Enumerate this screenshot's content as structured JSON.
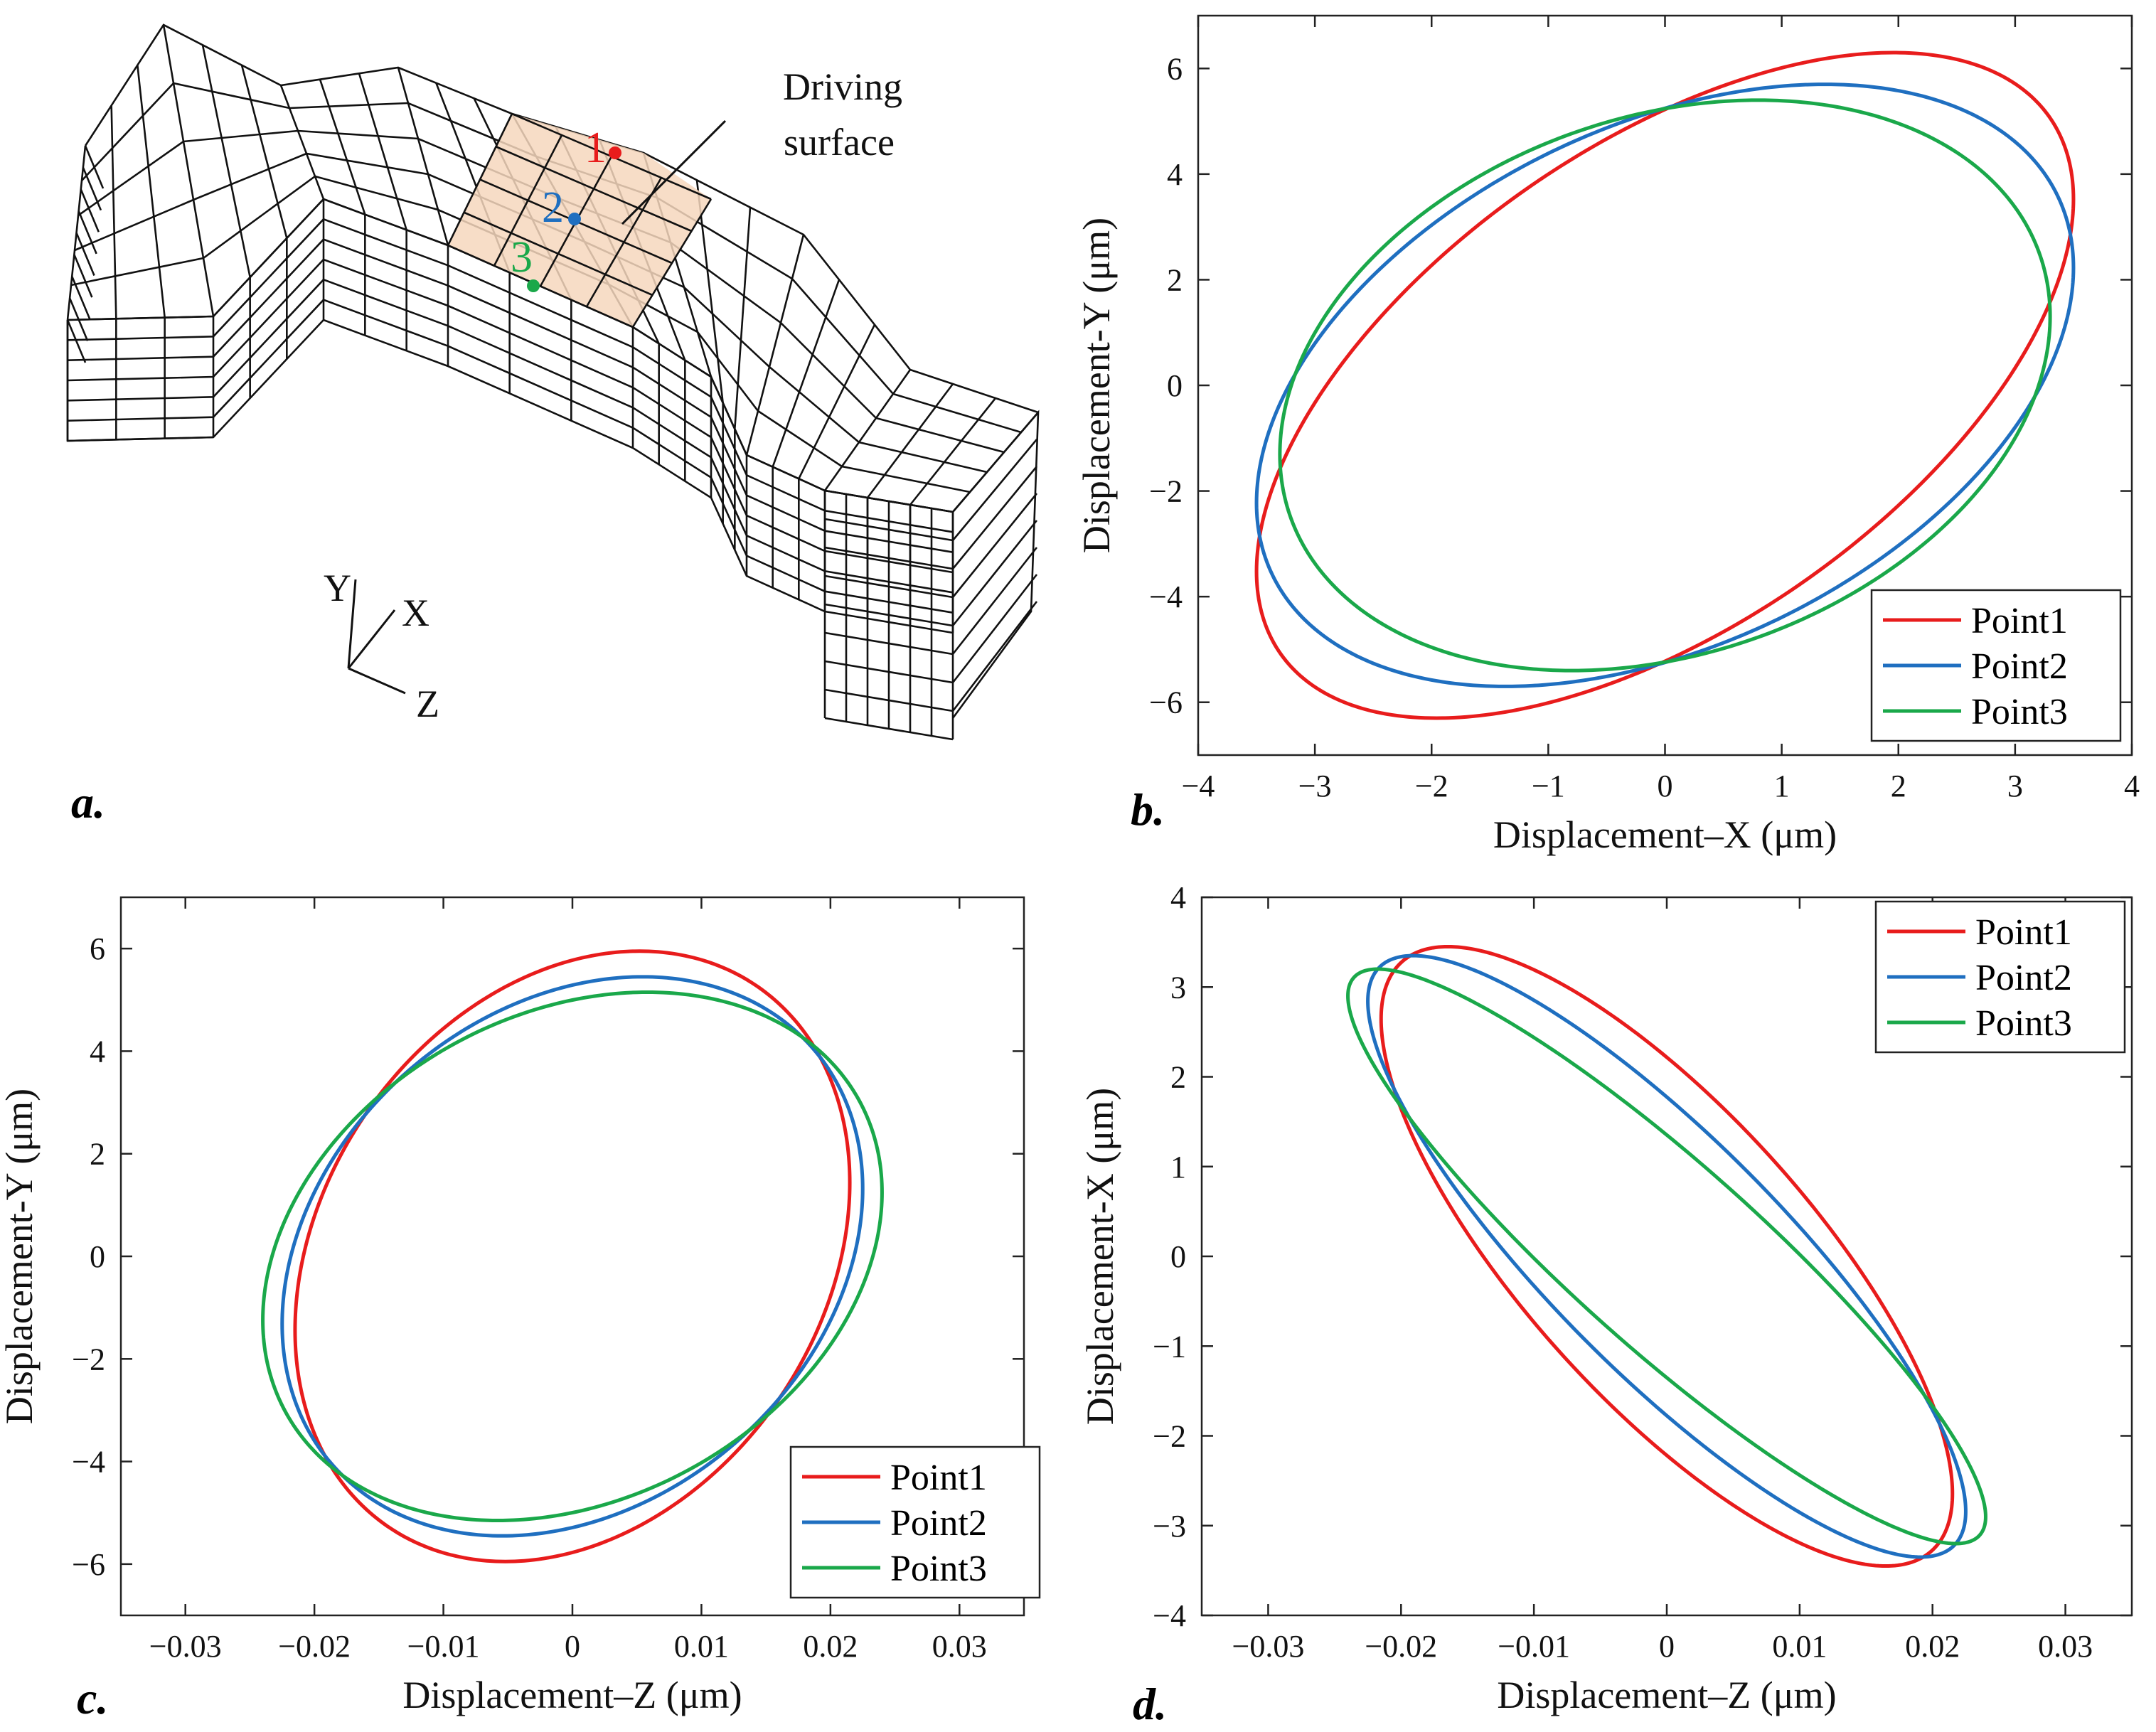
{
  "figure": {
    "panel_labels": {
      "a": "a.",
      "b": "b.",
      "c": "c.",
      "d": "d."
    },
    "colors": {
      "point1": "#e81c1c",
      "point2": "#1f6fc0",
      "point3": "#1aa84a",
      "driving_surface": "#f6d7bd"
    },
    "panel_a": {
      "driving_label_line1": "Driving",
      "driving_label_line2": "surface",
      "point_labels": [
        "1",
        "2",
        "3"
      ],
      "axis_labels": {
        "y": "Y",
        "x": "X",
        "z": "Z"
      }
    }
  },
  "chart_data": [
    {
      "id": "b",
      "type": "line",
      "xlabel": "Displacement–X (μm)",
      "ylabel": "Displacement-Y (μm)",
      "xlim": [
        -4,
        4
      ],
      "ylim": [
        -7,
        7
      ],
      "xticks": [
        "−4",
        "−3",
        "−2",
        "−1",
        "0",
        "1",
        "2",
        "3",
        "4"
      ],
      "yticks": [
        "−6",
        "−4",
        "−2",
        "0",
        "2",
        "4",
        "6"
      ],
      "legend": [
        "Point1",
        "Point2",
        "Point3"
      ],
      "legend_position": "bottom-right",
      "series": [
        {
          "name": "Point1",
          "shape": "closed-ellipse",
          "x_amp": 3.5,
          "x_phase_deg": 0,
          "y_amp": 6.3,
          "y_phase_deg": 56
        },
        {
          "name": "Point2",
          "shape": "closed-ellipse",
          "x_amp": 3.5,
          "x_phase_deg": 0,
          "y_amp": 5.7,
          "y_phase_deg": 67
        },
        {
          "name": "Point3",
          "shape": "closed-ellipse",
          "x_amp": 3.3,
          "x_phase_deg": 0,
          "y_amp": 5.4,
          "y_phase_deg": 76
        }
      ]
    },
    {
      "id": "c",
      "type": "line",
      "xlabel": "Displacement–Z (μm)",
      "ylabel": "Displacement-Y (μm)",
      "xlim": [
        -0.035,
        0.035
      ],
      "ylim": [
        -7,
        7
      ],
      "xticks": [
        "−0.03",
        "−0.02",
        "−0.01",
        "0",
        "0.01",
        "0.02",
        "0.03"
      ],
      "yticks": [
        "−6",
        "−4",
        "−2",
        "0",
        "2",
        "4",
        "6"
      ],
      "legend": [
        "Point1",
        "Point2",
        "Point3"
      ],
      "legend_position": "bottom-right",
      "series": [
        {
          "name": "Point1",
          "shape": "closed-ellipse",
          "x_amp": 0.0215,
          "x_phase_deg": 0,
          "y_amp": 5.95,
          "y_phase_deg": 76
        },
        {
          "name": "Point2",
          "shape": "closed-ellipse",
          "x_amp": 0.0225,
          "x_phase_deg": 0,
          "y_amp": 5.45,
          "y_phase_deg": 76
        },
        {
          "name": "Point3",
          "shape": "closed-ellipse",
          "x_amp": 0.024,
          "x_phase_deg": 0,
          "y_amp": 5.15,
          "y_phase_deg": 76
        }
      ]
    },
    {
      "id": "d",
      "type": "line",
      "xlabel": "Displacement–Z (μm)",
      "ylabel": "Displacement-X (μm)",
      "xlim": [
        -0.035,
        0.035
      ],
      "ylim": [
        -4,
        4
      ],
      "xticks": [
        "−0.03",
        "−0.02",
        "−0.01",
        "0",
        "0.01",
        "0.02",
        "0.03"
      ],
      "yticks": [
        "−4",
        "−3",
        "−2",
        "−1",
        "0",
        "1",
        "2",
        "3",
        "4"
      ],
      "legend": [
        "Point1",
        "Point2",
        "Point3"
      ],
      "legend_position": "top-right",
      "series": [
        {
          "name": "Point1",
          "shape": "closed-ellipse",
          "x_amp": 0.0215,
          "x_phase_deg": 0,
          "y_amp": 3.45,
          "y_phase_deg": 140
        },
        {
          "name": "Point2",
          "shape": "closed-ellipse",
          "x_amp": 0.0225,
          "x_phase_deg": 0,
          "y_amp": 3.35,
          "y_phase_deg": 148
        },
        {
          "name": "Point3",
          "shape": "closed-ellipse",
          "x_amp": 0.024,
          "x_phase_deg": 0,
          "y_amp": 3.2,
          "y_phase_deg": 155
        }
      ]
    }
  ]
}
